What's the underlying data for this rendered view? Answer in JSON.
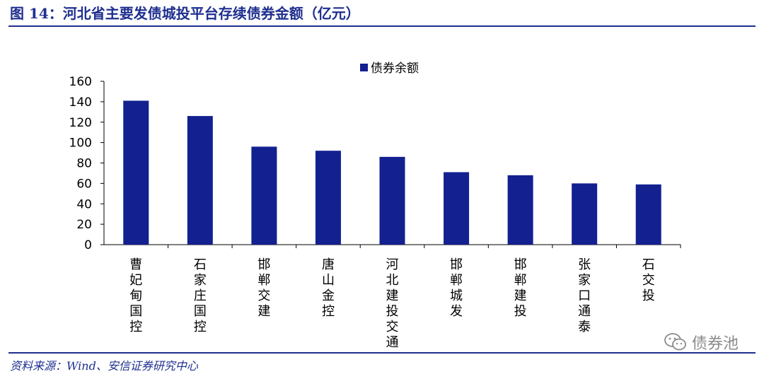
{
  "header": {
    "title": "图 14：河北省主要发债城投平台存续债券金额（亿元）"
  },
  "footer": {
    "source": "资料来源：Wind、安信证券研究中心"
  },
  "watermark": {
    "text": "债券池",
    "icon": "wechat-icon"
  },
  "colors": {
    "bar": "#13208f",
    "title": "#1f2f8f"
  },
  "chart_data": {
    "type": "bar",
    "categories": [
      "曹妃甸国控",
      "石家庄国控",
      "邯郸交建",
      "唐山金控",
      "河北建投交通",
      "邯郸城发",
      "邯郸建投",
      "张家口通泰",
      "石交投"
    ],
    "series": [
      {
        "name": "债券余额",
        "values": [
          141,
          126,
          96,
          92,
          86,
          71,
          68,
          60,
          59
        ]
      }
    ],
    "ylim": [
      0,
      160
    ],
    "yticks": [
      0,
      20,
      40,
      60,
      80,
      100,
      120,
      140,
      160
    ],
    "legend": "top-center",
    "grid": false
  }
}
